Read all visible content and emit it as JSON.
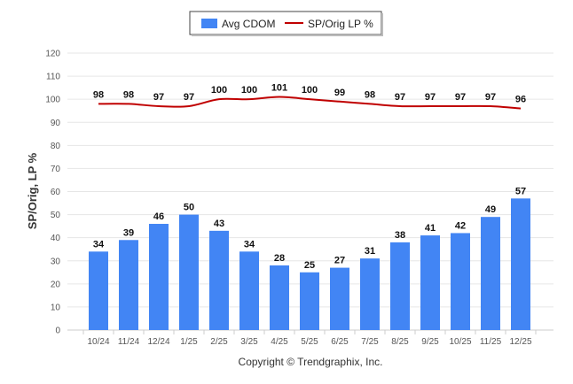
{
  "chart_data": {
    "type": "bar",
    "categories": [
      "10/24",
      "11/24",
      "12/24",
      "1/25",
      "2/25",
      "3/25",
      "4/25",
      "5/25",
      "6/25",
      "7/25",
      "8/25",
      "9/25",
      "10/25",
      "11/25",
      "12/25"
    ],
    "series": [
      {
        "name": "Avg CDOM",
        "type": "bar",
        "color": "#4285f4",
        "values": [
          34,
          39,
          46,
          50,
          43,
          34,
          28,
          25,
          27,
          31,
          38,
          41,
          42,
          49,
          57
        ]
      },
      {
        "name": "SP/Orig LP %",
        "type": "line",
        "color": "#c00000",
        "values": [
          98,
          98,
          97,
          97,
          100,
          100,
          101,
          100,
          99,
          98,
          97,
          97,
          97,
          97,
          96
        ]
      }
    ],
    "xlabel": "",
    "ylabel": "SP/Orig, LP %",
    "ylim": [
      0,
      120
    ],
    "yticks": [
      0,
      10,
      20,
      30,
      40,
      50,
      60,
      70,
      80,
      90,
      100,
      110,
      120
    ],
    "grid": true,
    "legend_position": "top-center"
  },
  "footer": {
    "copyright": "Copyright © Trendgraphix, Inc."
  }
}
